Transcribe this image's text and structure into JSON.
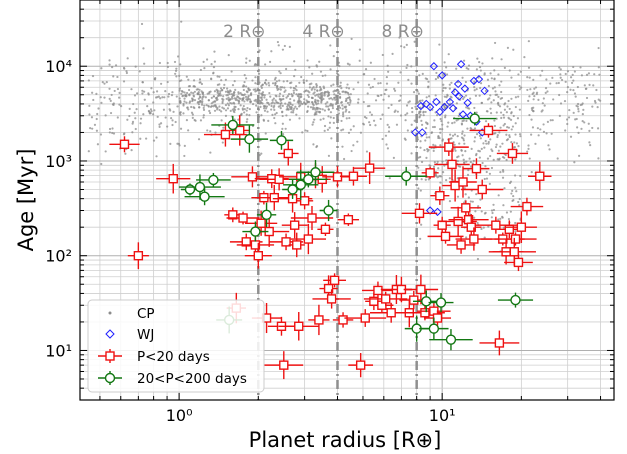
{
  "chart_data": {
    "type": "scatter",
    "xlabel": "Planet radius [R⊕]",
    "ylabel": "Age [Myr]",
    "xscale": "log",
    "yscale": "log",
    "xlim": [
      0.42,
      45
    ],
    "ylim": [
      3.0,
      50000
    ],
    "grid": true,
    "legend_position": "lower-left",
    "x_ticks": [
      {
        "value": 1,
        "label": "10⁰"
      },
      {
        "value": 10,
        "label": "10¹"
      }
    ],
    "y_ticks": [
      {
        "value": 10,
        "label": "10¹"
      },
      {
        "value": 100,
        "label": "10²"
      },
      {
        "value": 1000,
        "label": "10³"
      },
      {
        "value": 10000,
        "label": "10⁴"
      }
    ],
    "reference_lines": [
      {
        "x": 2,
        "label": "2 R⊕"
      },
      {
        "x": 4,
        "label": "4 R⊕"
      },
      {
        "x": 8,
        "label": "8 R⊕"
      }
    ],
    "series": [
      {
        "name": "CP",
        "marker": "dot",
        "color": "#8c8c8c",
        "description_points": "dense background population",
        "clusters": [
          {
            "x_range": [
              1.0,
              4.5
            ],
            "y_center": 4500,
            "y_spread": 0.18,
            "count": 520
          },
          {
            "x_range": [
              0.45,
              40
            ],
            "y_center": 4000,
            "y_spread": 0.55,
            "count": 900
          },
          {
            "x_range": [
              8,
              20
            ],
            "y_center": 1500,
            "y_spread": 0.6,
            "count": 260
          },
          {
            "x_range": [
              12,
              20
            ],
            "y_center": 250,
            "y_spread": 0.35,
            "count": 60
          }
        ]
      },
      {
        "name": "WJ",
        "marker": "diamond-open",
        "color": "#1f1fff",
        "points": [
          {
            "x": 8.3,
            "y": 3800
          },
          {
            "x": 8.7,
            "y": 4000
          },
          {
            "x": 9.0,
            "y": 3700
          },
          {
            "x": 9.3,
            "y": 10000
          },
          {
            "x": 9.5,
            "y": 4200
          },
          {
            "x": 9.8,
            "y": 3300
          },
          {
            "x": 10.2,
            "y": 3700
          },
          {
            "x": 10.7,
            "y": 4200
          },
          {
            "x": 11.0,
            "y": 3600
          },
          {
            "x": 11.2,
            "y": 5300
          },
          {
            "x": 11.5,
            "y": 6500
          },
          {
            "x": 11.8,
            "y": 10500
          },
          {
            "x": 12.2,
            "y": 5800
          },
          {
            "x": 12.5,
            "y": 4100
          },
          {
            "x": 12.8,
            "y": 3000
          },
          {
            "x": 13.2,
            "y": 7000
          },
          {
            "x": 13.8,
            "y": 7300
          },
          {
            "x": 13.5,
            "y": 2600
          },
          {
            "x": 14.2,
            "y": 2000
          },
          {
            "x": 12.0,
            "y": 3100
          },
          {
            "x": 10.0,
            "y": 8000
          },
          {
            "x": 7.9,
            "y": 2000
          },
          {
            "x": 8.4,
            "y": 2000
          },
          {
            "x": 9.0,
            "y": 300
          },
          {
            "x": 9.6,
            "y": 290
          },
          {
            "x": 11.6,
            "y": 4800
          },
          {
            "x": 14.5,
            "y": 5500
          }
        ]
      },
      {
        "name": "P<20 days",
        "marker": "square-open",
        "color": "#ee1111",
        "points": [
          {
            "x": 0.62,
            "y": 1500
          },
          {
            "x": 0.7,
            "y": 100
          },
          {
            "x": 0.95,
            "y": 650
          },
          {
            "x": 1.5,
            "y": 1900
          },
          {
            "x": 1.6,
            "y": 270
          },
          {
            "x": 1.65,
            "y": 28
          },
          {
            "x": 1.7,
            "y": 2100
          },
          {
            "x": 1.75,
            "y": 250
          },
          {
            "x": 1.8,
            "y": 140
          },
          {
            "x": 1.9,
            "y": 680
          },
          {
            "x": 1.95,
            "y": 130
          },
          {
            "x": 2.0,
            "y": 100
          },
          {
            "x": 2.05,
            "y": 220
          },
          {
            "x": 2.1,
            "y": 410
          },
          {
            "x": 2.15,
            "y": 22
          },
          {
            "x": 2.2,
            "y": 180
          },
          {
            "x": 2.25,
            "y": 650
          },
          {
            "x": 2.3,
            "y": 410
          },
          {
            "x": 2.4,
            "y": 640
          },
          {
            "x": 2.45,
            "y": 18
          },
          {
            "x": 2.5,
            "y": 7
          },
          {
            "x": 2.55,
            "y": 140
          },
          {
            "x": 2.6,
            "y": 1200
          },
          {
            "x": 2.7,
            "y": 400
          },
          {
            "x": 2.75,
            "y": 210
          },
          {
            "x": 2.8,
            "y": 130
          },
          {
            "x": 2.85,
            "y": 18
          },
          {
            "x": 2.9,
            "y": 680
          },
          {
            "x": 3.0,
            "y": 380
          },
          {
            "x": 3.1,
            "y": 150
          },
          {
            "x": 3.2,
            "y": 250
          },
          {
            "x": 3.3,
            "y": 700
          },
          {
            "x": 3.4,
            "y": 21
          },
          {
            "x": 3.5,
            "y": 640
          },
          {
            "x": 3.6,
            "y": 190
          },
          {
            "x": 3.7,
            "y": 45
          },
          {
            "x": 3.8,
            "y": 35
          },
          {
            "x": 3.9,
            "y": 55
          },
          {
            "x": 4.0,
            "y": 680
          },
          {
            "x": 4.2,
            "y": 21
          },
          {
            "x": 4.4,
            "y": 240
          },
          {
            "x": 4.6,
            "y": 690
          },
          {
            "x": 4.9,
            "y": 7
          },
          {
            "x": 5.1,
            "y": 22
          },
          {
            "x": 5.3,
            "y": 840
          },
          {
            "x": 5.5,
            "y": 33
          },
          {
            "x": 5.7,
            "y": 43
          },
          {
            "x": 5.9,
            "y": 30
          },
          {
            "x": 6.1,
            "y": 35
          },
          {
            "x": 6.4,
            "y": 25
          },
          {
            "x": 6.7,
            "y": 44
          },
          {
            "x": 7.0,
            "y": 44
          },
          {
            "x": 7.5,
            "y": 25
          },
          {
            "x": 7.8,
            "y": 34
          },
          {
            "x": 8.2,
            "y": 280
          },
          {
            "x": 8.3,
            "y": 44
          },
          {
            "x": 8.6,
            "y": 25
          },
          {
            "x": 9.0,
            "y": 750
          },
          {
            "x": 9.3,
            "y": 26
          },
          {
            "x": 9.6,
            "y": 22
          },
          {
            "x": 10.0,
            "y": 210
          },
          {
            "x": 10.3,
            "y": 160
          },
          {
            "x": 10.6,
            "y": 1400
          },
          {
            "x": 10.9,
            "y": 920
          },
          {
            "x": 11.2,
            "y": 550
          },
          {
            "x": 11.5,
            "y": 230
          },
          {
            "x": 11.8,
            "y": 130
          },
          {
            "x": 12.0,
            "y": 600
          },
          {
            "x": 12.3,
            "y": 320
          },
          {
            "x": 12.6,
            "y": 240
          },
          {
            "x": 12.9,
            "y": 200
          },
          {
            "x": 13.2,
            "y": 150
          },
          {
            "x": 13.5,
            "y": 830
          },
          {
            "x": 14.2,
            "y": 500
          },
          {
            "x": 15.0,
            "y": 2100
          },
          {
            "x": 16.0,
            "y": 210
          },
          {
            "x": 16.5,
            "y": 12
          },
          {
            "x": 17.0,
            "y": 150
          },
          {
            "x": 17.5,
            "y": 110
          },
          {
            "x": 18.0,
            "y": 190
          },
          {
            "x": 18.5,
            "y": 1200
          },
          {
            "x": 19.0,
            "y": 150
          },
          {
            "x": 19.5,
            "y": 85
          },
          {
            "x": 20.0,
            "y": 200
          },
          {
            "x": 21.0,
            "y": 330
          },
          {
            "x": 23.5,
            "y": 690
          },
          {
            "x": 18.8,
            "y": 110
          },
          {
            "x": 9.8,
            "y": 430
          }
        ]
      },
      {
        "name": "20<P<200 days",
        "marker": "circle-open",
        "color": "#127712",
        "points": [
          {
            "x": 1.1,
            "y": 500
          },
          {
            "x": 1.2,
            "y": 530
          },
          {
            "x": 1.25,
            "y": 420
          },
          {
            "x": 1.35,
            "y": 630
          },
          {
            "x": 1.55,
            "y": 21
          },
          {
            "x": 1.6,
            "y": 2400
          },
          {
            "x": 1.85,
            "y": 1700
          },
          {
            "x": 1.95,
            "y": 180
          },
          {
            "x": 2.15,
            "y": 270
          },
          {
            "x": 2.45,
            "y": 1650
          },
          {
            "x": 2.7,
            "y": 500
          },
          {
            "x": 2.9,
            "y": 560
          },
          {
            "x": 3.1,
            "y": 640
          },
          {
            "x": 3.3,
            "y": 760
          },
          {
            "x": 3.7,
            "y": 300
          },
          {
            "x": 7.3,
            "y": 690
          },
          {
            "x": 8.0,
            "y": 17
          },
          {
            "x": 8.7,
            "y": 33
          },
          {
            "x": 9.3,
            "y": 17
          },
          {
            "x": 9.9,
            "y": 32
          },
          {
            "x": 10.8,
            "y": 13
          },
          {
            "x": 13.3,
            "y": 2800
          },
          {
            "x": 19.0,
            "y": 34
          }
        ]
      }
    ]
  }
}
